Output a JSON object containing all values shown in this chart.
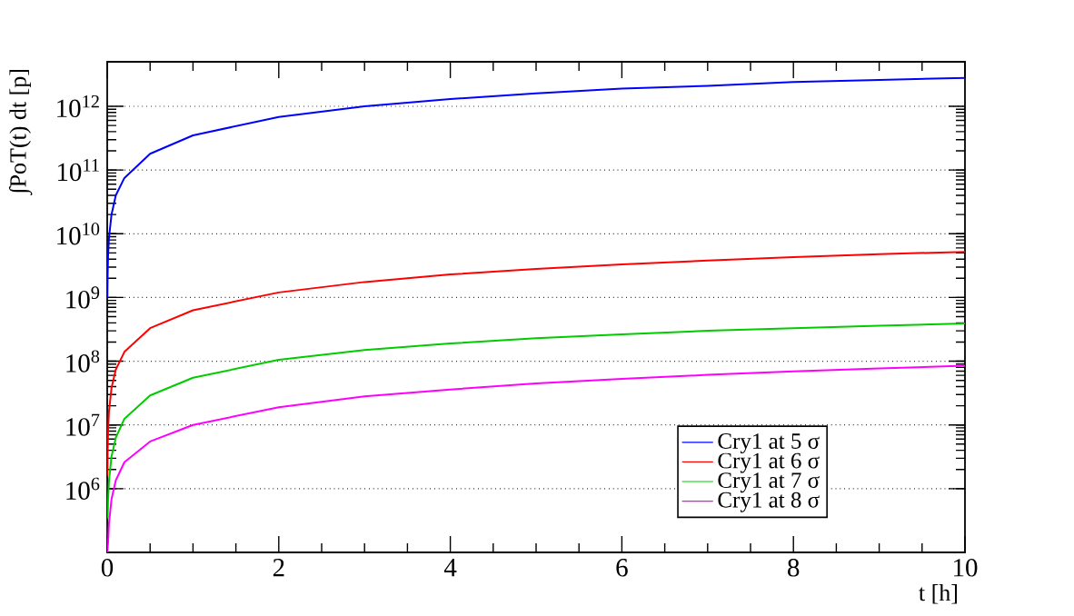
{
  "chart_data": {
    "type": "line",
    "xlabel": "t [h]",
    "ylabel": "∫PoT(t) dt [p]",
    "log": "y",
    "grid": "y",
    "legend": "bottom right",
    "marker": "none",
    "line_style": "solid",
    "xlim": [
      0,
      10
    ],
    "ylim": [
      100000,
      5000000000000
    ],
    "xticks": [
      0,
      2,
      4,
      6,
      8,
      10
    ],
    "yticks": [
      {
        "value": 1000000,
        "label": "10$^{6}$"
      },
      {
        "value": 10000000,
        "label": "10$^{7}$"
      },
      {
        "value": 100000000,
        "label": "10$^{8}$"
      },
      {
        "value": 1000000000,
        "label": "10$^{9}$"
      },
      {
        "value": 10000000000,
        "label": "10$^{10}$"
      },
      {
        "value": 100000000000,
        "label": "10$^{11}$"
      },
      {
        "value": 1000000000000,
        "label": "10$^{12}$"
      }
    ],
    "series": [
      {
        "name": "Cry1 at 5 σ",
        "color": "#0000ff",
        "x": [
          0.002,
          0.005,
          0.01,
          0.02,
          0.05,
          0.1,
          0.2,
          0.5,
          1,
          2,
          3,
          4,
          5,
          6,
          7,
          8,
          9,
          10
        ],
        "values": [
          1000000000,
          2300000000,
          4500000000,
          8500000000,
          20000000000,
          40000000000,
          75000000000,
          180000000000,
          350000000000,
          680000000000,
          1000000000000,
          1300000000000,
          1600000000000,
          1900000000000,
          2100000000000,
          2400000000000,
          2600000000000,
          2800000000000
        ]
      },
      {
        "name": "Cry1 at 6 σ",
        "color": "#ff0000",
        "x": [
          0.002,
          0.005,
          0.01,
          0.02,
          0.05,
          0.1,
          0.2,
          0.5,
          1,
          2,
          3,
          4,
          5,
          6,
          7,
          8,
          9,
          10
        ],
        "values": [
          1600000,
          4000000,
          8000000,
          16000000,
          38000000,
          74000000,
          140000000,
          330000000,
          630000000,
          1200000000,
          1750000000,
          2300000000,
          2800000000,
          3300000000,
          3800000000,
          4300000000,
          4800000000,
          5200000000
        ]
      },
      {
        "name": "Cry1 at 7 σ",
        "color": "#00cc00",
        "x": [
          0.005,
          0.01,
          0.02,
          0.05,
          0.1,
          0.2,
          0.5,
          1,
          2,
          3,
          4,
          5,
          6,
          7,
          8,
          9,
          10
        ],
        "values": [
          340000,
          660000,
          1300000,
          3200000,
          6300000,
          12500000,
          29000000,
          55000000,
          105000000,
          150000000,
          190000000,
          230000000,
          265000000,
          300000000,
          330000000,
          360000000,
          390000000
        ]
      },
      {
        "name": "Cry1 at 8 σ",
        "color": "#ff00ff",
        "x": [
          0,
          0.01,
          0.02,
          0.05,
          0.1,
          0.2,
          0.5,
          1,
          2,
          3,
          4,
          5,
          6,
          7,
          8,
          9,
          10
        ],
        "values": [
          100000,
          140000,
          280000,
          680000,
          1350000,
          2600000,
          5500000,
          10000000,
          19000000,
          28000000,
          36000000,
          45000000,
          53000000,
          61000000,
          69000000,
          77000000,
          85000000
        ]
      }
    ]
  }
}
